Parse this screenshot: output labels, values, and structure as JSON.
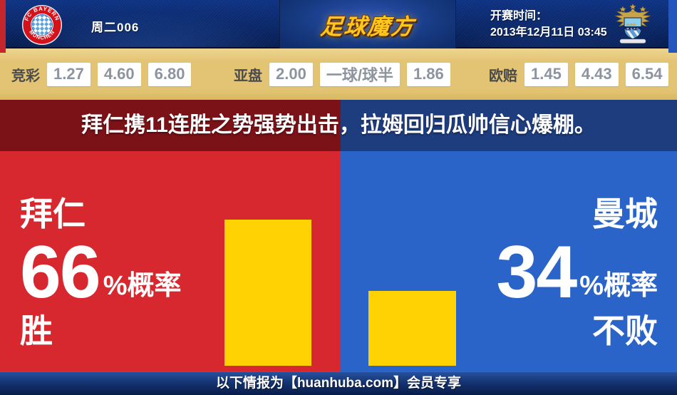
{
  "header": {
    "match_number": "周二006",
    "brand_name": "足球魔方",
    "kickoff_label": "开赛时间：",
    "kickoff_datetime": "2013年12月11日 03:45",
    "home_crest": {
      "icon": "fc-bayern-munchen-crest",
      "top_text": "FC BAYERN",
      "bottom_text": "MÜNCHEN"
    },
    "away_crest": {
      "icon": "manchester-city-crest",
      "band_text": "M.C.F.C"
    }
  },
  "odds": {
    "groups": [
      {
        "label": "竞彩",
        "values": [
          "1.27",
          "4.60",
          "6.80"
        ]
      },
      {
        "label": "亚盘",
        "values": [
          "2.00",
          "一球/球半",
          "1.86"
        ]
      },
      {
        "label": "欧赔",
        "values": [
          "1.45",
          "4.43",
          "6.54"
        ]
      }
    ]
  },
  "headline": {
    "text": "拜仁携11连胜之势强势出击，拉姆回归瓜帅信心爆棚。"
  },
  "prediction": {
    "home": {
      "team": "拜仁",
      "percent": "66",
      "suffix": "%概率",
      "outcome": "胜"
    },
    "away": {
      "team": "曼城",
      "percent": "34",
      "suffix": "%概率",
      "outcome": "不败"
    }
  },
  "chart_data": {
    "type": "bar",
    "categories": [
      "拜仁 胜",
      "曼城 不败"
    ],
    "values": [
      66,
      34
    ],
    "value_unit": "%概率",
    "ylim": [
      0,
      100
    ],
    "bar_color": "#ffd303"
  },
  "footer": {
    "text": "以下情报为【huanhuba.com】会员专享"
  },
  "colors": {
    "brand_gold": "#ffc71d",
    "odds_value_gray": "#8e949f",
    "headline_home_bg": "#7b1217",
    "headline_away_bg": "#1e3d7f",
    "home_bg": "#d6282e",
    "away_bg": "#2b64c8",
    "bar_yellow": "#ffd303"
  }
}
